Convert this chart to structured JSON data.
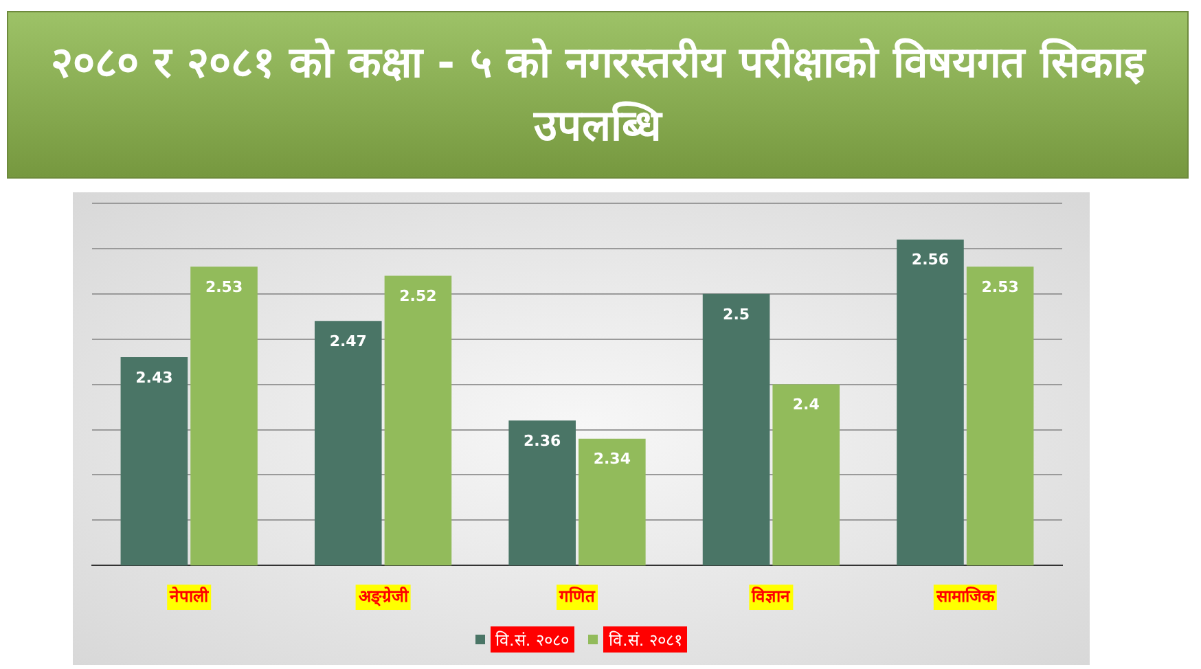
{
  "chart_data": {
    "type": "bar",
    "title": "२०८० र २०८१ को कक्षा - ५ को नगरस्तरीय परीक्षाको विषयगत सिकाइ उपलब्धि",
    "categories": [
      "नेपाली",
      "अङ्ग्रेजी",
      "गणित",
      "विज्ञान",
      "सामाजिक"
    ],
    "series": [
      {
        "name": "वि.सं. २०८०",
        "color": "#4a7566",
        "values": [
          2.43,
          2.47,
          2.36,
          2.5,
          2.56
        ]
      },
      {
        "name": "वि.सं. २०८१",
        "color": "#92bb5b",
        "values": [
          2.53,
          2.52,
          2.34,
          2.4,
          2.53
        ]
      }
    ],
    "ylim": [
      2.2,
      2.6
    ],
    "yticks": [
      {
        "value": 2.2,
        "label": null
      },
      {
        "value": 2.25,
        "label": null
      },
      {
        "value": 2.3,
        "label": null
      },
      {
        "value": 2.35,
        "label": null
      },
      {
        "value": 2.4,
        "label": null
      },
      {
        "value": 2.45,
        "label": null
      },
      {
        "value": 2.5,
        "label": null
      },
      {
        "value": 2.55,
        "label": null
      },
      {
        "value": 2.6,
        "label": null
      }
    ],
    "tick_labels": "x",
    "grid": "y",
    "data_labels": true,
    "legend": "bottom"
  }
}
